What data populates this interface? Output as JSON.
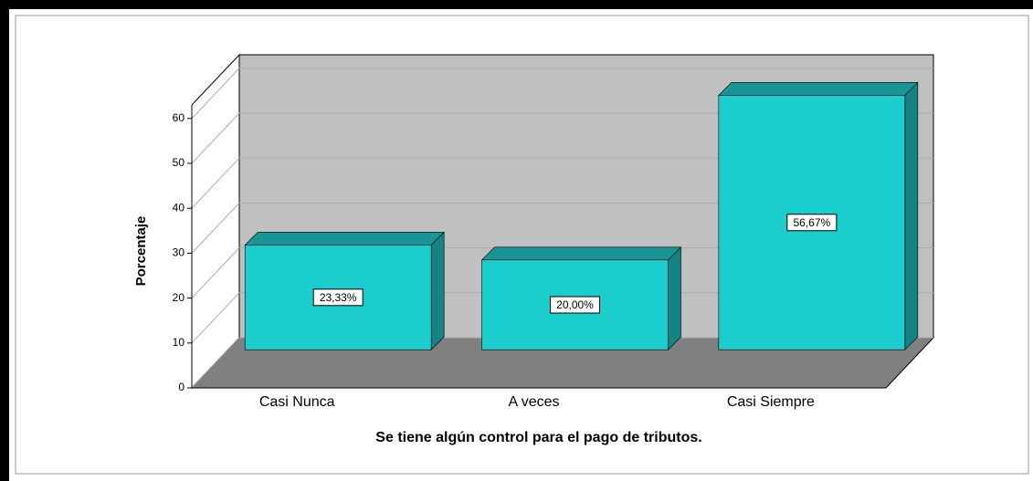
{
  "chart_data": {
    "type": "bar",
    "x_label": "Se tiene algún control para el pago de tributos.",
    "y_label": "Porcentaje",
    "categories": [
      "Casi Nunca",
      "A veces",
      "Casi Siempre"
    ],
    "values": [
      23.33,
      20.0,
      56.67
    ],
    "value_labels": [
      "23,33%",
      "20,00%",
      "56,67%"
    ],
    "color": "#1ccdcd",
    "ylim": [
      0,
      63
    ],
    "yticks": [
      0,
      10,
      20,
      30,
      40,
      50,
      60
    ],
    "grid": true
  }
}
